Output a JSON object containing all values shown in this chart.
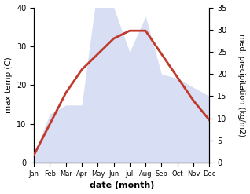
{
  "months": [
    "Jan",
    "Feb",
    "Mar",
    "Apr",
    "May",
    "Jun",
    "Jul",
    "Aug",
    "Sep",
    "Oct",
    "Nov",
    "Dec"
  ],
  "month_indices": [
    1,
    2,
    3,
    4,
    5,
    6,
    7,
    8,
    9,
    10,
    11,
    12
  ],
  "temperature": [
    2,
    10,
    18,
    24,
    28,
    32,
    34,
    34,
    28,
    22,
    16,
    11
  ],
  "precipitation": [
    2,
    11,
    13,
    13,
    40,
    35,
    25,
    33,
    20,
    19,
    17,
    15
  ],
  "temp_color": "#c0392b",
  "precip_fill_color": "#b8c4ea",
  "temp_ylim": [
    0,
    40
  ],
  "precip_ylim": [
    0,
    35
  ],
  "temp_yticks": [
    0,
    10,
    20,
    30,
    40
  ],
  "precip_yticks": [
    0,
    5,
    10,
    15,
    20,
    25,
    30,
    35
  ],
  "xlabel": "date (month)",
  "ylabel_left": "max temp (C)",
  "ylabel_right": "med. precipitation (kg/m2)",
  "bg_color": "#ffffff",
  "linewidth": 2.0,
  "figsize": [
    3.18,
    2.47
  ],
  "dpi": 100
}
